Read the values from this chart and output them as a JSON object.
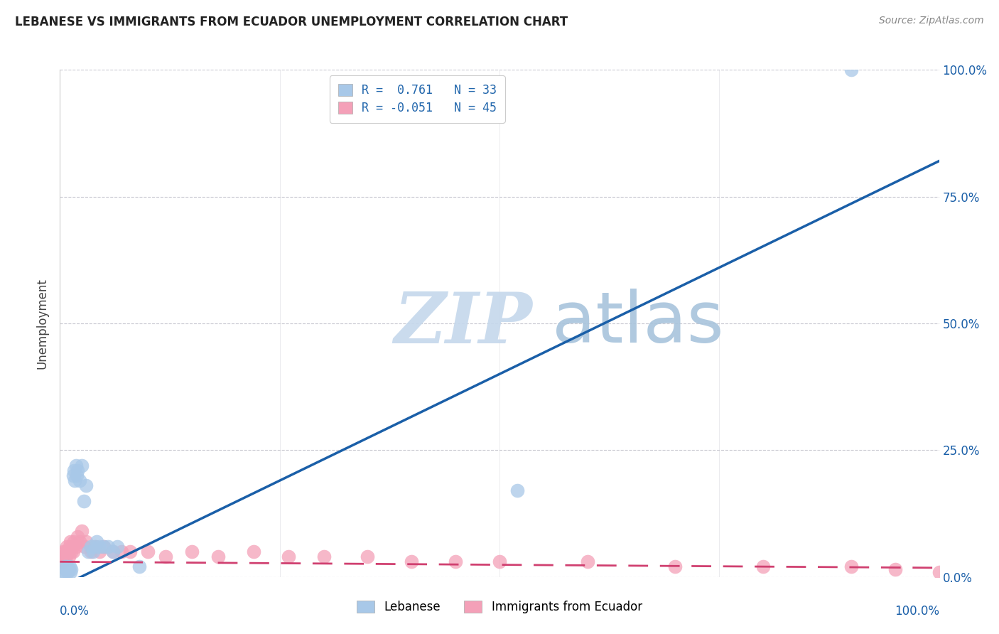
{
  "title": "LEBANESE VS IMMIGRANTS FROM ECUADOR UNEMPLOYMENT CORRELATION CHART",
  "source": "Source: ZipAtlas.com",
  "ylabel": "Unemployment",
  "xlim": [
    0.0,
    1.0
  ],
  "ylim": [
    0.0,
    1.0
  ],
  "ytick_positions": [
    0.0,
    0.25,
    0.5,
    0.75,
    1.0
  ],
  "ytick_labels": [
    "0.0%",
    "25.0%",
    "50.0%",
    "75.0%",
    "100.0%"
  ],
  "xtick_positions": [
    0.0,
    0.25,
    0.5,
    0.75,
    1.0
  ],
  "watermark_zip": "ZIP",
  "watermark_atlas": "atlas",
  "legend_blue_r": "0.761",
  "legend_blue_n": "33",
  "legend_pink_r": "-0.051",
  "legend_pink_n": "45",
  "blue_scatter_color": "#a8c8e8",
  "pink_scatter_color": "#f4a0b8",
  "blue_line_color": "#1a5fa8",
  "pink_line_color": "#d04070",
  "grid_color": "#c8c8d0",
  "background_color": "#ffffff",
  "blue_line_x0": 0.0,
  "blue_line_y0": -0.02,
  "blue_line_x1": 1.0,
  "blue_line_y1": 0.82,
  "pink_line_x0": 0.0,
  "pink_line_y0": 0.03,
  "pink_line_x1": 1.0,
  "pink_line_y1": 0.018,
  "blue_scatter_x": [
    0.003,
    0.005,
    0.006,
    0.007,
    0.008,
    0.009,
    0.01,
    0.011,
    0.012,
    0.013,
    0.015,
    0.016,
    0.017,
    0.018,
    0.019,
    0.02,
    0.022,
    0.025,
    0.027,
    0.03,
    0.032,
    0.035,
    0.038,
    0.04,
    0.042,
    0.045,
    0.05,
    0.055,
    0.06,
    0.065,
    0.09,
    0.52,
    0.9
  ],
  "blue_scatter_y": [
    0.01,
    0.02,
    0.01,
    0.015,
    0.02,
    0.01,
    0.015,
    0.02,
    0.01,
    0.015,
    0.2,
    0.21,
    0.19,
    0.22,
    0.2,
    0.21,
    0.19,
    0.22,
    0.15,
    0.18,
    0.05,
    0.06,
    0.05,
    0.06,
    0.07,
    0.06,
    0.06,
    0.06,
    0.05,
    0.06,
    0.02,
    0.17,
    1.0
  ],
  "pink_scatter_x": [
    0.002,
    0.003,
    0.004,
    0.005,
    0.006,
    0.007,
    0.008,
    0.009,
    0.01,
    0.011,
    0.012,
    0.013,
    0.014,
    0.015,
    0.016,
    0.018,
    0.02,
    0.022,
    0.025,
    0.028,
    0.03,
    0.035,
    0.04,
    0.045,
    0.05,
    0.06,
    0.07,
    0.08,
    0.1,
    0.12,
    0.15,
    0.18,
    0.22,
    0.26,
    0.3,
    0.35,
    0.4,
    0.45,
    0.5,
    0.6,
    0.7,
    0.8,
    0.9,
    0.95,
    1.0
  ],
  "pink_scatter_y": [
    0.04,
    0.03,
    0.05,
    0.04,
    0.05,
    0.04,
    0.06,
    0.05,
    0.04,
    0.06,
    0.07,
    0.05,
    0.06,
    0.05,
    0.07,
    0.06,
    0.08,
    0.07,
    0.09,
    0.06,
    0.07,
    0.05,
    0.06,
    0.05,
    0.06,
    0.05,
    0.05,
    0.05,
    0.05,
    0.04,
    0.05,
    0.04,
    0.05,
    0.04,
    0.04,
    0.04,
    0.03,
    0.03,
    0.03,
    0.03,
    0.02,
    0.02,
    0.02,
    0.015,
    0.01
  ]
}
